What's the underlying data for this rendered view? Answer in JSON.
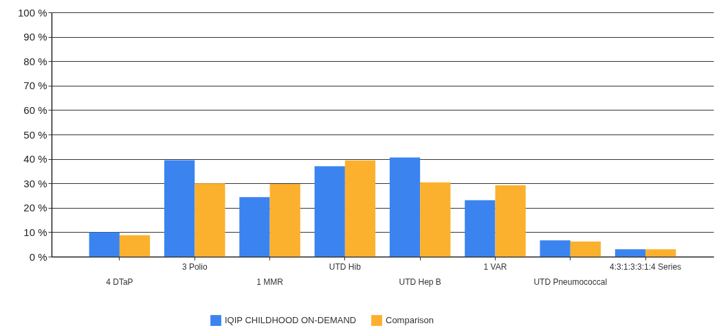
{
  "chart_data": {
    "type": "bar",
    "categories": [
      "4 DTaP",
      "3 Polio",
      "1 MMR",
      "UTD Hib",
      "UTD Hep B",
      "1 VAR",
      "UTD Pneumococcal",
      "4:3:1:3:3:1:4 Series"
    ],
    "series": [
      {
        "name": "IQIP CHILDHOOD ON-DEMAND",
        "color": "#3b84f0",
        "values": [
          10,
          39.5,
          24.4,
          37,
          40.6,
          23.1,
          6.7,
          3
        ]
      },
      {
        "name": "Comparison",
        "color": "#fbb12e",
        "values": [
          8.8,
          30,
          29.8,
          39.4,
          30.4,
          29.2,
          6.2,
          3
        ]
      }
    ],
    "ylim": [
      0,
      100
    ],
    "yticks": [
      {
        "value": 0,
        "label": "0 %"
      },
      {
        "value": 10,
        "label": "10 %"
      },
      {
        "value": 20,
        "label": "20 %"
      },
      {
        "value": 30,
        "label": "30 %"
      },
      {
        "value": 40,
        "label": "40 %"
      },
      {
        "value": 50,
        "label": "50 %"
      },
      {
        "value": 60,
        "label": "60 %"
      },
      {
        "value": 70,
        "label": "70 %"
      },
      {
        "value": 80,
        "label": "80 %"
      },
      {
        "value": 90,
        "label": "90 %"
      },
      {
        "value": 100,
        "label": "100 %"
      }
    ],
    "grid": "y",
    "legend": "bottom"
  }
}
